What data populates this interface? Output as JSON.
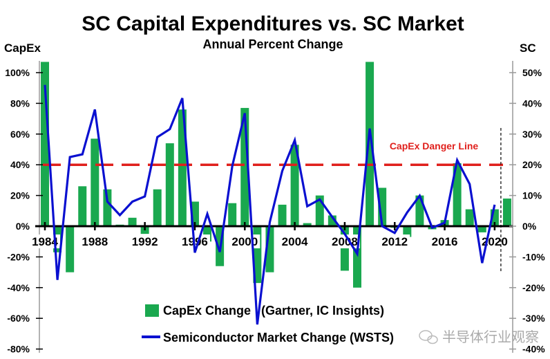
{
  "chart_data": {
    "type": "bar+line",
    "title": "SC Capital Expenditures vs. SC Market",
    "subtitle": "Annual Percent Change",
    "ylabel_left": "CapEx",
    "ylabel_right": "SC",
    "ylim_left": [
      -80,
      110
    ],
    "ylim_right": [
      -40,
      55
    ],
    "left_ticks": [
      "-80%",
      "-60%",
      "-40%",
      "-20%",
      "0%",
      "20%",
      "40%",
      "60%",
      "80%",
      "100%"
    ],
    "right_ticks": [
      "-40%",
      "-30%",
      "-20%",
      "-10%",
      "0%",
      "10%",
      "20%",
      "30%",
      "40%",
      "50%"
    ],
    "x_tick_labels": [
      "1984",
      "1988",
      "1992",
      "1996",
      "2000",
      "2004",
      "2008",
      "2012",
      "2016",
      "2020"
    ],
    "years": [
      1984,
      1985,
      1986,
      1987,
      1988,
      1989,
      1990,
      1991,
      1992,
      1993,
      1994,
      1995,
      1996,
      1997,
      1998,
      1999,
      2000,
      2001,
      2002,
      2003,
      2004,
      2005,
      2006,
      2007,
      2008,
      2009,
      2010,
      2011,
      2012,
      2013,
      2014,
      2015,
      2016,
      2017,
      2018,
      2019,
      2020,
      2021
    ],
    "series": [
      {
        "name": "CapEx Change   (Gartner, IC Insights)",
        "type": "bar",
        "axis": "left",
        "color": "#1aa84f",
        "values": [
          107,
          -17,
          -30,
          26,
          57,
          24,
          1,
          5.5,
          -5,
          24,
          54,
          76,
          16,
          -10,
          -26,
          15,
          77,
          -37,
          -30,
          14,
          53,
          2,
          20,
          7,
          -29,
          -40,
          107,
          25,
          -1,
          -7,
          20,
          -2,
          4,
          41,
          11,
          -4,
          11,
          18
        ]
      },
      {
        "name": "Semiconductor Market Change (WSTS)",
        "type": "line",
        "axis": "right",
        "color": "#0a10d0",
        "values": [
          46,
          -17.5,
          22.5,
          23.4,
          38,
          8,
          3.6,
          8,
          9.7,
          29,
          31.6,
          41.7,
          -8.6,
          4,
          -8.4,
          19.6,
          36.8,
          -32,
          1.3,
          18,
          28,
          6.5,
          8.7,
          3,
          -2.5,
          -9,
          31.8,
          0,
          -2.2,
          4.5,
          9.9,
          -0.5,
          1.1,
          21.5,
          13.7,
          -12,
          7
        ]
      }
    ],
    "reference_line": {
      "label": "CapEx Danger Line",
      "value_left": 40,
      "color": "#e0201c"
    },
    "forecast_divider_after": 2020,
    "grid": false,
    "legend_position": "bottom-center"
  },
  "watermark": "半导体行业观察"
}
